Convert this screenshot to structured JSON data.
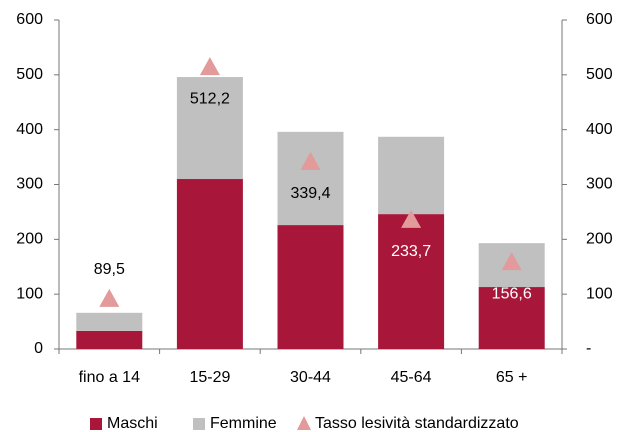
{
  "chart_data": {
    "type": "bar",
    "categories": [
      "fino a 14",
      "15-29",
      "30-44",
      "45-64",
      "65 +"
    ],
    "series": [
      {
        "name": "Maschi",
        "color": "#a8173a",
        "values": [
          33,
          310,
          226,
          246,
          113
        ]
      },
      {
        "name": "Femmine",
        "color": "#c0c0c0",
        "values": [
          33,
          186,
          170,
          141,
          80
        ]
      },
      {
        "name": "Tasso lesività standardizzato",
        "color": "#e39a9a",
        "axis": "y2",
        "marker": "triangle",
        "values": [
          89.5,
          512.2,
          339.4,
          233.7,
          156.6
        ],
        "value_labels": [
          "89,5",
          "512,2",
          "339,4",
          "233,7",
          "156,6"
        ]
      }
    ],
    "stacked": true,
    "ylim": [
      0,
      600
    ],
    "yticks": [
      0,
      100,
      200,
      300,
      400,
      500,
      600
    ],
    "y2lim": [
      0,
      600
    ],
    "y2ticks": [
      {
        "value": 0,
        "label": "-"
      },
      100,
      200,
      300,
      400,
      500,
      600
    ],
    "legend": "bottom"
  }
}
